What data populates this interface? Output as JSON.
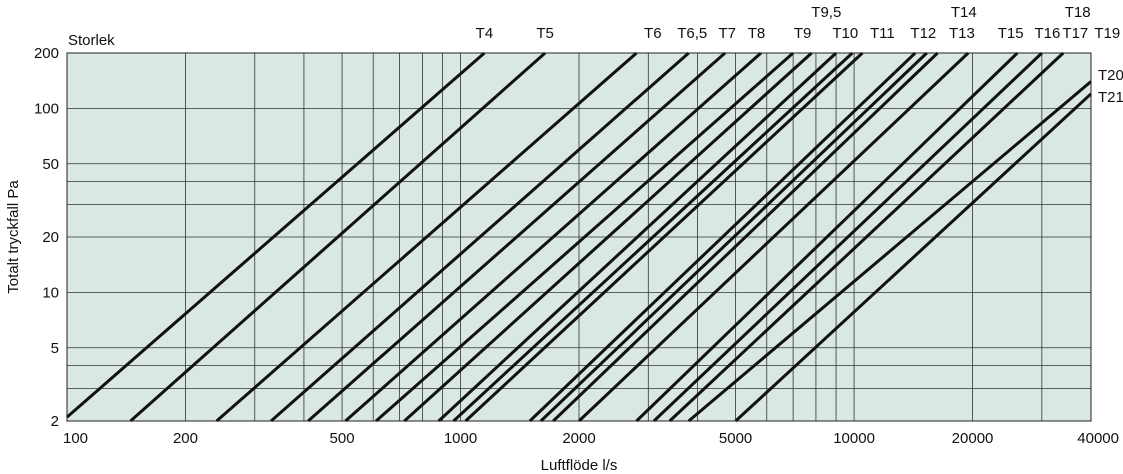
{
  "chart_data": {
    "type": "line",
    "legend_title": "Storlek",
    "xlabel": "Luftflöde l/s",
    "ylabel": "Totalt tryckfall Pa",
    "xscale": "log",
    "yscale": "log",
    "xlim": [
      100,
      40000
    ],
    "ylim": [
      2,
      200
    ],
    "grid": true,
    "background_color": "#d9e8e1",
    "line_color": "#111111",
    "x_ticks": [
      {
        "value": 100,
        "label": "100"
      },
      {
        "value": 200,
        "label": "200"
      },
      {
        "value": 500,
        "label": "500"
      },
      {
        "value": 1000,
        "label": "1000"
      },
      {
        "value": 2000,
        "label": "2000"
      },
      {
        "value": 5000,
        "label": "5000"
      },
      {
        "value": 10000,
        "label": "10000"
      },
      {
        "value": 20000,
        "label": "20000"
      },
      {
        "value": 40000,
        "label": "40000"
      }
    ],
    "y_ticks": [
      {
        "value": 2,
        "label": "2"
      },
      {
        "value": 5,
        "label": "5"
      },
      {
        "value": 10,
        "label": "10"
      },
      {
        "value": 20,
        "label": "20"
      },
      {
        "value": 50,
        "label": "50"
      },
      {
        "value": 100,
        "label": "100"
      },
      {
        "value": 200,
        "label": "200"
      }
    ],
    "x_gridlines": [
      100,
      200,
      300,
      400,
      500,
      600,
      700,
      800,
      900,
      1000,
      2000,
      3000,
      4000,
      5000,
      6000,
      7000,
      8000,
      9000,
      10000,
      20000,
      30000,
      40000
    ],
    "y_gridlines": [
      2,
      3,
      4,
      5,
      10,
      20,
      30,
      40,
      50,
      100,
      200
    ],
    "series": [
      {
        "name": "T4",
        "points": [
          [
            100,
            2.1
          ],
          [
            1150,
            200
          ]
        ]
      },
      {
        "name": "T5",
        "points": [
          [
            145,
            2
          ],
          [
            1640,
            200
          ]
        ]
      },
      {
        "name": "T6",
        "points": [
          [
            240,
            2
          ],
          [
            2800,
            200
          ]
        ]
      },
      {
        "name": "T6,5",
        "points": [
          [
            330,
            2
          ],
          [
            3800,
            200
          ]
        ]
      },
      {
        "name": "T7",
        "points": [
          [
            410,
            2
          ],
          [
            4700,
            200
          ]
        ]
      },
      {
        "name": "T8",
        "points": [
          [
            510,
            2
          ],
          [
            5800,
            200
          ]
        ]
      },
      {
        "name": "T9",
        "points": [
          [
            610,
            2
          ],
          [
            7000,
            200
          ]
        ]
      },
      {
        "name": "T9,5",
        "points": [
          [
            720,
            2
          ],
          [
            7800,
            200
          ]
        ]
      },
      {
        "name": "T10",
        "points": [
          [
            880,
            2
          ],
          [
            9000,
            200
          ]
        ]
      },
      {
        "name": "T11",
        "points": [
          [
            960,
            2
          ],
          [
            9900,
            200
          ]
        ]
      },
      {
        "name": "T12",
        "points": [
          [
            1030,
            2
          ],
          [
            10500,
            200
          ]
        ]
      },
      {
        "name": "T13",
        "points": [
          [
            1500,
            2
          ],
          [
            14300,
            200
          ]
        ]
      },
      {
        "name": "T14",
        "points": [
          [
            1600,
            2
          ],
          [
            15300,
            200
          ]
        ]
      },
      {
        "name": "T15",
        "points": [
          [
            1720,
            2
          ],
          [
            16300,
            200
          ]
        ]
      },
      {
        "name": "T16",
        "points": [
          [
            2000,
            2
          ],
          [
            19500,
            200
          ]
        ]
      },
      {
        "name": "T17",
        "points": [
          [
            2800,
            2
          ],
          [
            26000,
            200
          ]
        ]
      },
      {
        "name": "T18",
        "points": [
          [
            3100,
            2
          ],
          [
            30000,
            200
          ]
        ]
      },
      {
        "name": "T19",
        "points": [
          [
            3400,
            2
          ],
          [
            34000,
            200
          ]
        ]
      },
      {
        "name": "T20",
        "points": [
          [
            3800,
            2
          ],
          [
            40000,
            140
          ]
        ]
      },
      {
        "name": "T21",
        "points": [
          [
            5000,
            2
          ],
          [
            40000,
            120
          ]
        ]
      }
    ]
  },
  "size_labels": [
    {
      "text": "T4",
      "ref": 1150,
      "row": 1
    },
    {
      "text": "T5",
      "ref": 1640,
      "row": 1
    },
    {
      "text": "T6",
      "ref": 3080,
      "row": 1
    },
    {
      "text": "T6,5",
      "ref": 3880,
      "row": 1
    },
    {
      "text": "T7",
      "ref": 4760,
      "row": 1
    },
    {
      "text": "T8",
      "ref": 5650,
      "row": 1
    },
    {
      "text": "T9",
      "ref": 7400,
      "row": 1
    },
    {
      "text": "T9,5",
      "ref": 8500,
      "row": 0
    },
    {
      "text": "T10",
      "ref": 9500,
      "row": 1
    },
    {
      "text": "T11",
      "ref": 11800,
      "row": 1
    },
    {
      "text": "T12",
      "ref": 15000,
      "row": 1
    },
    {
      "text": "T13",
      "ref": 18800,
      "row": 1
    },
    {
      "text": "T14",
      "ref": 19000,
      "row": 0
    },
    {
      "text": "T15",
      "ref": 25000,
      "row": 1
    },
    {
      "text": "T16",
      "ref": 31000,
      "row": 1
    },
    {
      "text": "T17",
      "ref": 36500,
      "row": 1
    },
    {
      "text": "T18",
      "ref": 37000,
      "row": 0
    },
    {
      "text": "T19",
      "ref": 44000,
      "row": 1
    },
    {
      "text": "T20",
      "ref": 44000,
      "row": 2
    },
    {
      "text": "T21",
      "ref": 44000,
      "row": 3
    }
  ]
}
